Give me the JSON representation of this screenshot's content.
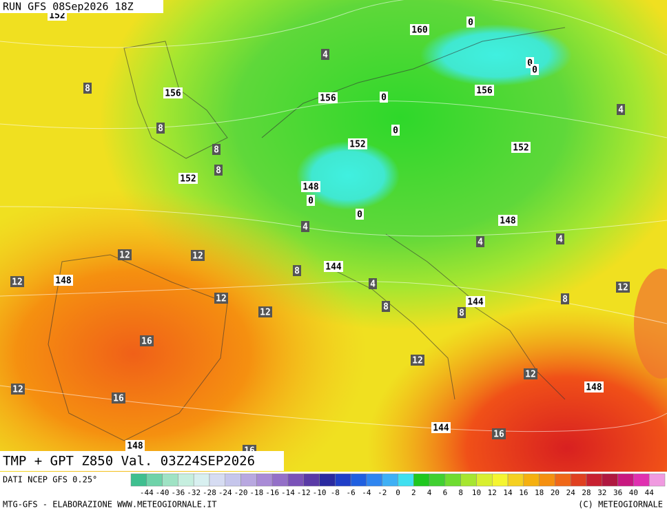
{
  "header": "RUN GFS 08Sep2026 18Z",
  "title": "TMP + GPT Z850 Val. 03Z24SEP2026",
  "source": "DATI NCEP GFS 0.25°",
  "credit": "MTG-GFS - ELABORAZIONE WWW.METEOGIORNALE.IT",
  "copyright": "(C) METEOGIORNALE",
  "legend": {
    "labels": [
      -44,
      -40,
      -36,
      -32,
      -28,
      -24,
      -20,
      -18,
      -16,
      -14,
      -12,
      -10,
      -8,
      -6,
      -4,
      -2,
      0,
      2,
      4,
      6,
      8,
      10,
      12,
      14,
      16,
      18,
      20,
      24,
      28,
      32,
      36,
      40,
      44
    ],
    "colors": [
      "#3fbf8f",
      "#6fd3a9",
      "#9fe3c4",
      "#c6efdf",
      "#d8f0f0",
      "#d6dcf2",
      "#c6c6ec",
      "#b8a8e0",
      "#a98bd6",
      "#9470c8",
      "#7a52b8",
      "#5a3aa6",
      "#2a2aa0",
      "#1f3fc8",
      "#2060e0",
      "#2f86f0",
      "#3fb0f5",
      "#40e0f0",
      "#1fc81f",
      "#40d030",
      "#6fdc30",
      "#a6e630",
      "#d8ef30",
      "#f5f530",
      "#f5d020",
      "#f5b010",
      "#f59010",
      "#f06818",
      "#e04020",
      "#c82030",
      "#b01840",
      "#c81880",
      "#e030b0",
      "#f09ae0"
    ]
  },
  "map_labels": {
    "gpt": [
      "152",
      "160",
      "156",
      "156",
      "156",
      "152",
      "152",
      "152",
      "148",
      "148",
      "148",
      "144",
      "144",
      "148",
      "144",
      "148"
    ],
    "zero": [
      "0",
      "0",
      "0",
      "0",
      "0",
      "0",
      "0"
    ],
    "tmp": [
      "8",
      "4",
      "8",
      "8",
      "8",
      "4",
      "12",
      "12",
      "12",
      "12",
      "12",
      "4",
      "8",
      "4",
      "4",
      "4",
      "8",
      "8",
      "8",
      "12",
      "16",
      "12",
      "12",
      "16",
      "12",
      "16",
      "16"
    ]
  }
}
